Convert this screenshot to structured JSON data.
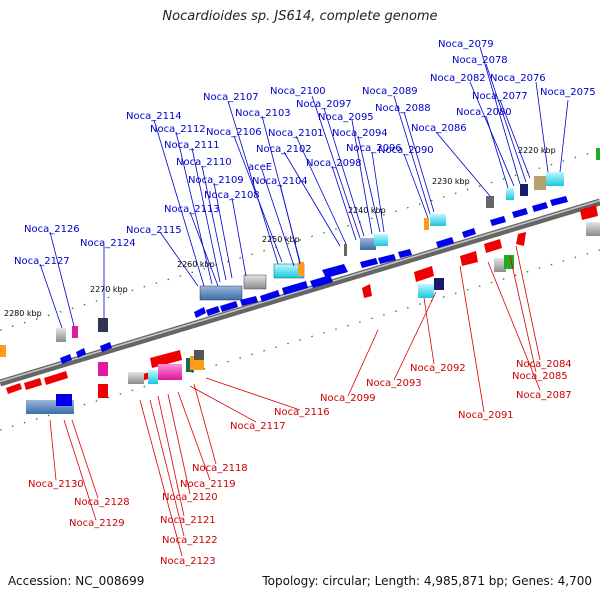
{
  "title": "Nocardioides sp. JS614, complete genome",
  "accession": "Accession: NC_008699",
  "summary": "Topology: circular; Length: 4,985,871 bp; Genes: 4,700",
  "colors": {
    "forward": "#0000ee",
    "reverse": "#ee0000",
    "backbone": "#777777",
    "dots": "#228822"
  },
  "ticks": [
    "2220 kbp",
    "2230 kbp",
    "2240 kbp",
    "2250 kbp",
    "2260 kbp",
    "2270 kbp",
    "2280 kbp"
  ],
  "labels_top": [
    "Noca_2079",
    "Noca_2078",
    "Noca_2082",
    "Noca_2076",
    "Noca_2077",
    "Noca_2075",
    "Noca_2080",
    "Noca_2089",
    "Noca_2088",
    "Noca_2086",
    "Noca_2100",
    "Noca_2107",
    "Noca_2097",
    "Noca_2103",
    "Noca_2095",
    "Noca_2114",
    "Noca_2112",
    "Noca_2106",
    "Noca_2101",
    "Noca_2094",
    "Noca_2111",
    "Noca_2102",
    "Noca_2096",
    "Noca_2090",
    "Noca_2110",
    "aceE",
    "Noca_2098",
    "Noca_2109",
    "Noca_2104",
    "Noca_2108",
    "Noca_2113",
    "Noca_2126",
    "Noca_2115",
    "Noca_2124",
    "Noca_2127"
  ],
  "labels_bottom": [
    "Noca_2084",
    "Noca_2085",
    "Noca_2092",
    "Noca_2093",
    "Noca_2087",
    "Noca_2099",
    "Noca_2091",
    "Noca_2116",
    "Noca_2117",
    "Noca_2118",
    "Noca_2130",
    "Noca_2119",
    "Noca_2120",
    "Noca_2128",
    "Noca_2129",
    "Noca_2121",
    "Noca_2122",
    "Noca_2123"
  ]
}
